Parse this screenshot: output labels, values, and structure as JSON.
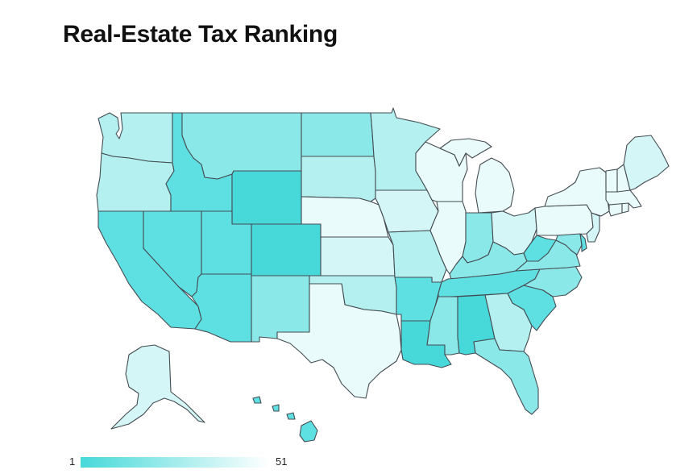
{
  "title": "Real-Estate Tax Ranking",
  "legend": {
    "min_label": "1",
    "max_label": "51",
    "color_low": "#47d9d9",
    "color_high": "#ffffff"
  },
  "colors": {
    "darkest": "#47d9d9",
    "dark": "#5ee0e2",
    "mid": "#8be8e9",
    "light": "#b4f0f0",
    "lighter": "#d4f6f6",
    "lightest": "#eafbfb",
    "border": "#444c52"
  },
  "states": [
    {
      "id": "WA",
      "level": "light"
    },
    {
      "id": "OR",
      "level": "light"
    },
    {
      "id": "CA",
      "level": "dark"
    },
    {
      "id": "ID",
      "level": "dark"
    },
    {
      "id": "NV",
      "level": "dark"
    },
    {
      "id": "MT",
      "level": "mid"
    },
    {
      "id": "WY",
      "level": "darkest"
    },
    {
      "id": "UT",
      "level": "dark"
    },
    {
      "id": "AZ",
      "level": "dark"
    },
    {
      "id": "CO",
      "level": "darkest"
    },
    {
      "id": "NM",
      "level": "mid"
    },
    {
      "id": "ND",
      "level": "mid"
    },
    {
      "id": "SD",
      "level": "light"
    },
    {
      "id": "NE",
      "level": "lightest"
    },
    {
      "id": "KS",
      "level": "lighter"
    },
    {
      "id": "OK",
      "level": "light"
    },
    {
      "id": "TX",
      "level": "lightest"
    },
    {
      "id": "MN",
      "level": "light"
    },
    {
      "id": "IA",
      "level": "lighter"
    },
    {
      "id": "MO",
      "level": "light"
    },
    {
      "id": "AR",
      "level": "dark"
    },
    {
      "id": "LA",
      "level": "darkest"
    },
    {
      "id": "WI",
      "level": "lightest"
    },
    {
      "id": "IL",
      "level": "lightest"
    },
    {
      "id": "MI",
      "level": "lightest"
    },
    {
      "id": "IN",
      "level": "mid"
    },
    {
      "id": "OH",
      "level": "lighter"
    },
    {
      "id": "KY",
      "level": "mid"
    },
    {
      "id": "TN",
      "level": "dark"
    },
    {
      "id": "MS",
      "level": "mid"
    },
    {
      "id": "AL",
      "level": "darkest"
    },
    {
      "id": "GA",
      "level": "light"
    },
    {
      "id": "FL",
      "level": "mid"
    },
    {
      "id": "SC",
      "level": "dark"
    },
    {
      "id": "NC",
      "level": "mid"
    },
    {
      "id": "VA",
      "level": "mid"
    },
    {
      "id": "WV",
      "level": "dark"
    },
    {
      "id": "PA",
      "level": "lightest"
    },
    {
      "id": "NY",
      "level": "lightest"
    },
    {
      "id": "MD",
      "level": "mid"
    },
    {
      "id": "DE",
      "level": "dark"
    },
    {
      "id": "NJ",
      "level": "lighter"
    },
    {
      "id": "CT",
      "level": "lightest"
    },
    {
      "id": "RI",
      "level": "lightest"
    },
    {
      "id": "MA",
      "level": "lightest"
    },
    {
      "id": "VT",
      "level": "lightest"
    },
    {
      "id": "NH",
      "level": "lightest"
    },
    {
      "id": "ME",
      "level": "lighter"
    },
    {
      "id": "AK",
      "level": "lighter"
    },
    {
      "id": "HI",
      "level": "dark"
    }
  ]
}
